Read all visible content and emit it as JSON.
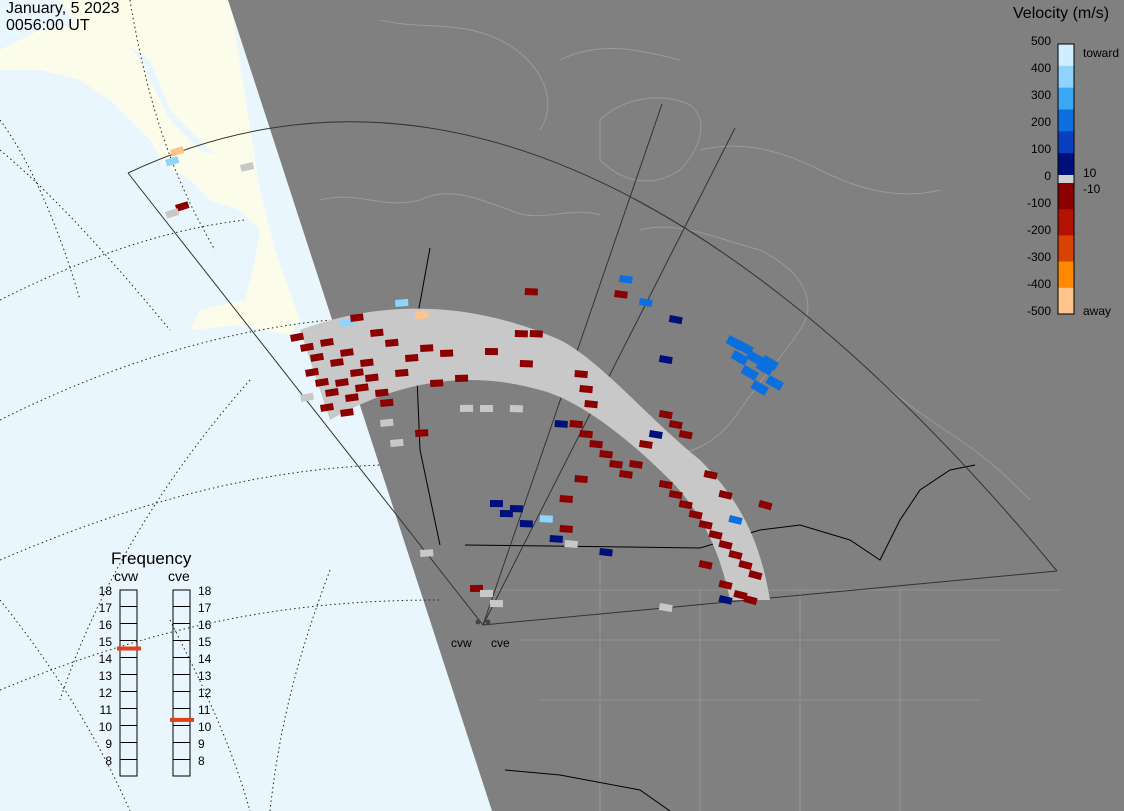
{
  "header": {
    "date": "January, 5 2023",
    "time": "0056:00 UT"
  },
  "colorbar": {
    "title": "Velocity (m/s)",
    "ticks": [
      "500",
      "400",
      "300",
      "200",
      "100",
      "10",
      "0",
      "-10",
      "-100",
      "-200",
      "-300",
      "-400",
      "-500"
    ],
    "toward_label": "toward",
    "away_label": "away",
    "colors": [
      "#cfeeff",
      "#8ed4ff",
      "#3aa8f5",
      "#0b6fe0",
      "#0a3fbf",
      "#00107a",
      "#d0d0d0",
      "#8b0000",
      "#b31200",
      "#d84300",
      "#ff8a00",
      "#ffc48a"
    ]
  },
  "frequency": {
    "title": "Frequency",
    "left_radar": "cvw",
    "right_radar": "cve",
    "ticks": [
      "18",
      "17",
      "16",
      "15",
      "14",
      "13",
      "12",
      "11",
      "10",
      "9",
      "8"
    ],
    "cvw_value_mhz": 15,
    "cve_value_mhz": 10.8,
    "marker_color": "#e0401a"
  },
  "radars": {
    "left_label": "cvw",
    "right_label": "cve"
  },
  "map": {
    "ocean_color": "#eaf6fd",
    "land_color": "#fcfcea",
    "night_color": "#808080",
    "ground_scatter_color": "#c8c8c8"
  }
}
